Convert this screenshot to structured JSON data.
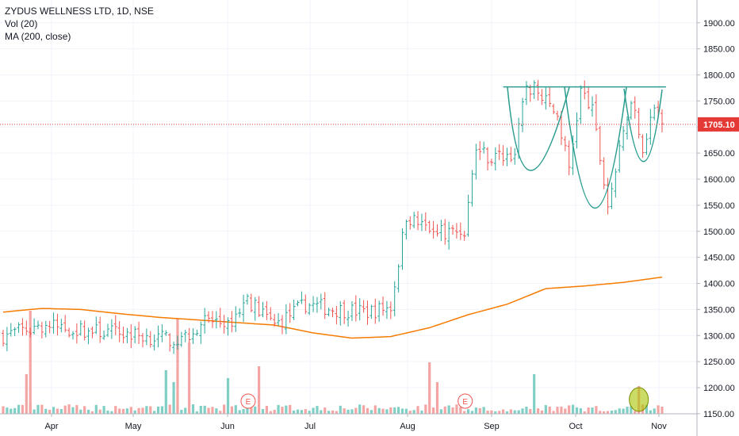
{
  "chart_data": {
    "type": "ohlc",
    "title": "ZYDUS WELLNESS LTD, 1D, NSE",
    "indicators": [
      "Vol (20)",
      "MA (200, close)"
    ],
    "last_price": "1705.10",
    "y_axis": {
      "ylim": [
        1140,
        1930
      ],
      "ticks": [
        "1150.00",
        "1200.00",
        "1250.00",
        "1300.00",
        "1350.00",
        "1400.00",
        "1450.00",
        "1500.00",
        "1550.00",
        "1600.00",
        "1650.00",
        "1700.00",
        "1750.00",
        "1800.00",
        "1850.00",
        "1900.00"
      ]
    },
    "x_axis": {
      "ticks": [
        "Apr",
        "May",
        "Jun",
        "Jul",
        "Aug",
        "Sep",
        "Oct",
        "Nov"
      ]
    },
    "colors": {
      "up": "#26a69a",
      "down": "#ef5350",
      "up_volume": "#7fcfc5",
      "down_volume": "#f4a5a3",
      "ma": "#f57c00",
      "drawing": "#2a9d8f",
      "price_line": "#e53935",
      "marker": "#a9c400"
    },
    "earnings_markers": [
      "E",
      "E"
    ],
    "anchors": [
      {
        "day": 0,
        "price": 1300
      },
      {
        "day": 10,
        "price": 1320
      },
      {
        "day": 20,
        "price": 1310
      },
      {
        "day": 30,
        "price": 1305
      },
      {
        "day": 40,
        "price": 1295
      },
      {
        "day": 46,
        "price": 1290
      },
      {
        "day": 52,
        "price": 1330
      },
      {
        "day": 58,
        "price": 1320
      },
      {
        "day": 63,
        "price": 1370
      },
      {
        "day": 70,
        "price": 1320
      },
      {
        "day": 78,
        "price": 1360
      },
      {
        "day": 86,
        "price": 1350
      },
      {
        "day": 94,
        "price": 1345
      },
      {
        "day": 100,
        "price": 1355
      },
      {
        "day": 104,
        "price": 1530
      },
      {
        "day": 108,
        "price": 1510
      },
      {
        "day": 114,
        "price": 1500
      },
      {
        "day": 119,
        "price": 1500
      },
      {
        "day": 122,
        "price": 1660
      },
      {
        "day": 126,
        "price": 1640
      },
      {
        "day": 132,
        "price": 1650
      },
      {
        "day": 135,
        "price": 1780
      },
      {
        "day": 139,
        "price": 1760
      },
      {
        "day": 143,
        "price": 1720
      },
      {
        "day": 146,
        "price": 1620
      },
      {
        "day": 149,
        "price": 1770
      },
      {
        "day": 152,
        "price": 1730
      },
      {
        "day": 156,
        "price": 1550
      },
      {
        "day": 159,
        "price": 1650
      },
      {
        "day": 162,
        "price": 1760
      },
      {
        "day": 165,
        "price": 1660
      },
      {
        "day": 168,
        "price": 1740
      },
      {
        "day": 170,
        "price": 1705
      }
    ],
    "ma_line": [
      {
        "day": 0,
        "price": 1345
      },
      {
        "day": 10,
        "price": 1352
      },
      {
        "day": 20,
        "price": 1350
      },
      {
        "day": 30,
        "price": 1342
      },
      {
        "day": 40,
        "price": 1335
      },
      {
        "day": 50,
        "price": 1330
      },
      {
        "day": 60,
        "price": 1325
      },
      {
        "day": 70,
        "price": 1320
      },
      {
        "day": 80,
        "price": 1305
      },
      {
        "day": 90,
        "price": 1295
      },
      {
        "day": 100,
        "price": 1298
      },
      {
        "day": 110,
        "price": 1315
      },
      {
        "day": 120,
        "price": 1340
      },
      {
        "day": 130,
        "price": 1360
      },
      {
        "day": 140,
        "price": 1390
      },
      {
        "day": 150,
        "price": 1395
      },
      {
        "day": 160,
        "price": 1402
      },
      {
        "day": 170,
        "price": 1412
      }
    ],
    "resistance_line": {
      "start_day": 129,
      "end_day": 171,
      "price": 1777
    },
    "highlighted_volume_day": 164
  }
}
